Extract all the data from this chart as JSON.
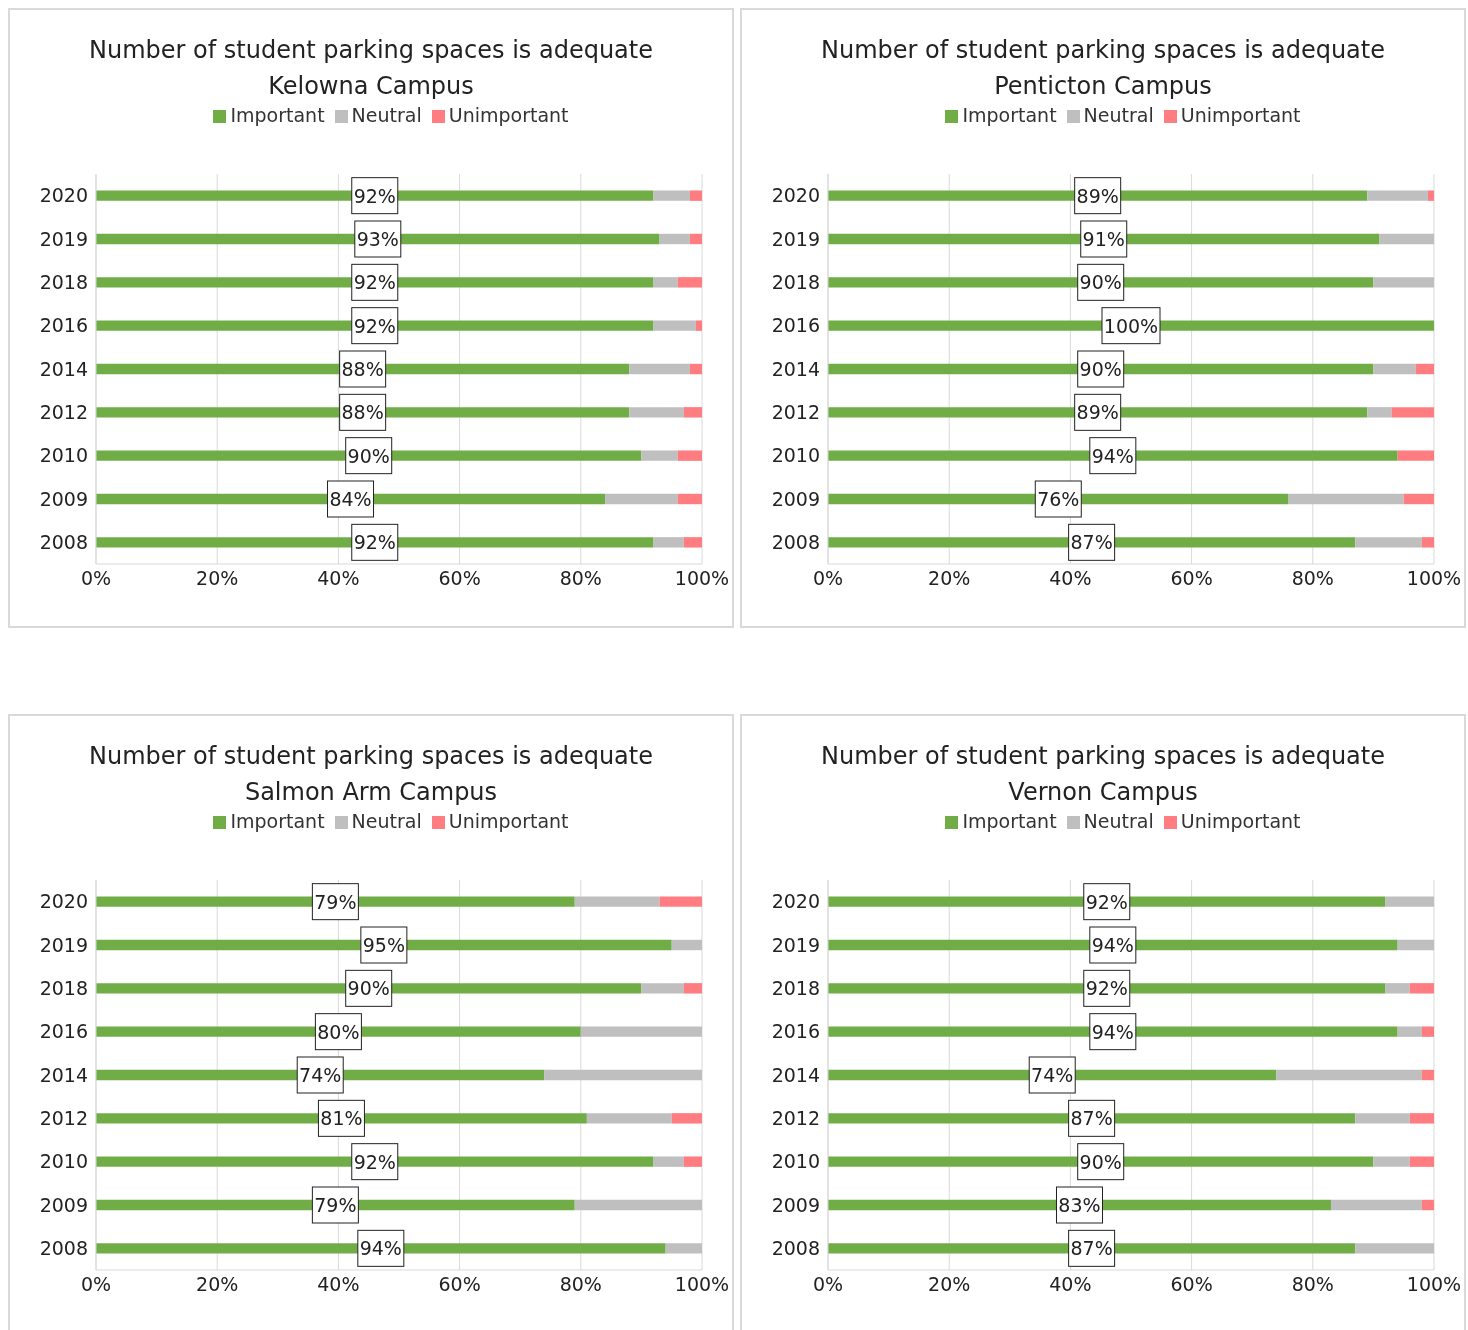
{
  "chart_data": [
    {
      "type": "bar",
      "orientation": "horizontal",
      "stacked": true,
      "title": "Number of student parking spaces is adequate",
      "subtitle": "Kelowna Campus",
      "categories": [
        "2020",
        "2019",
        "2018",
        "2016",
        "2014",
        "2012",
        "2010",
        "2009",
        "2008"
      ],
      "xlim": [
        0,
        100
      ],
      "xticks": [
        {
          "value": 0,
          "label": "0%"
        },
        {
          "value": 20,
          "label": "20%"
        },
        {
          "value": 40,
          "label": "40%"
        },
        {
          "value": 60,
          "label": "60%"
        },
        {
          "value": 80,
          "label": "80%"
        },
        {
          "value": 100,
          "label": "100%"
        }
      ],
      "grid": "x",
      "legend": "top",
      "series": [
        {
          "name": "Important",
          "color": "#70ad47",
          "values": [
            92,
            93,
            92,
            92,
            88,
            88,
            90,
            84,
            92
          ],
          "value_labels": [
            "92%",
            "93%",
            "92%",
            "92%",
            "88%",
            "88%",
            "90%",
            "84%",
            "92%"
          ]
        },
        {
          "name": "Neutral",
          "color": "#bfbfbf",
          "values": [
            6,
            5,
            4,
            7,
            10,
            9,
            6,
            12,
            5
          ]
        },
        {
          "name": "Unimportant",
          "color": "#ff7c80",
          "values": [
            2,
            2,
            4,
            1,
            2,
            3,
            4,
            4,
            3
          ]
        }
      ]
    },
    {
      "type": "bar",
      "orientation": "horizontal",
      "stacked": true,
      "title": "Number of student parking spaces is adequate",
      "subtitle": "Penticton Campus",
      "categories": [
        "2020",
        "2019",
        "2018",
        "2016",
        "2014",
        "2012",
        "2010",
        "2009",
        "2008"
      ],
      "xlim": [
        0,
        100
      ],
      "xticks": [
        {
          "value": 0,
          "label": "0%"
        },
        {
          "value": 20,
          "label": "20%"
        },
        {
          "value": 40,
          "label": "40%"
        },
        {
          "value": 60,
          "label": "60%"
        },
        {
          "value": 80,
          "label": "80%"
        },
        {
          "value": 100,
          "label": "100%"
        }
      ],
      "grid": "x",
      "legend": "top",
      "series": [
        {
          "name": "Important",
          "color": "#70ad47",
          "values": [
            89,
            91,
            90,
            100,
            90,
            89,
            94,
            76,
            87
          ],
          "value_labels": [
            "89%",
            "91%",
            "90%",
            "100%",
            "90%",
            "89%",
            "94%",
            "76%",
            "87%"
          ]
        },
        {
          "name": "Neutral",
          "color": "#bfbfbf",
          "values": [
            10,
            9,
            10,
            0,
            7,
            4,
            0,
            19,
            11
          ]
        },
        {
          "name": "Unimportant",
          "color": "#ff7c80",
          "values": [
            1,
            0,
            0,
            0,
            3,
            7,
            6,
            5,
            2
          ]
        }
      ]
    },
    {
      "type": "bar",
      "orientation": "horizontal",
      "stacked": true,
      "title": "Number of student parking spaces is adequate",
      "subtitle": "Salmon Arm Campus",
      "categories": [
        "2020",
        "2019",
        "2018",
        "2016",
        "2014",
        "2012",
        "2010",
        "2009",
        "2008"
      ],
      "xlim": [
        0,
        100
      ],
      "xticks": [
        {
          "value": 0,
          "label": "0%"
        },
        {
          "value": 20,
          "label": "20%"
        },
        {
          "value": 40,
          "label": "40%"
        },
        {
          "value": 60,
          "label": "60%"
        },
        {
          "value": 80,
          "label": "80%"
        },
        {
          "value": 100,
          "label": "100%"
        }
      ],
      "grid": "x",
      "legend": "top",
      "series": [
        {
          "name": "Important",
          "color": "#70ad47",
          "values": [
            79,
            95,
            90,
            80,
            74,
            81,
            92,
            79,
            94
          ],
          "value_labels": [
            "79%",
            "95%",
            "90%",
            "80%",
            "74%",
            "81%",
            "92%",
            "79%",
            "94%"
          ]
        },
        {
          "name": "Neutral",
          "color": "#bfbfbf",
          "values": [
            14,
            5,
            7,
            20,
            26,
            14,
            5,
            21,
            6
          ]
        },
        {
          "name": "Unimportant",
          "color": "#ff7c80",
          "values": [
            7,
            0,
            3,
            0,
            0,
            5,
            3,
            0,
            0
          ]
        }
      ]
    },
    {
      "type": "bar",
      "orientation": "horizontal",
      "stacked": true,
      "title": "Number of student parking spaces is adequate",
      "subtitle": "Vernon Campus",
      "categories": [
        "2020",
        "2019",
        "2018",
        "2016",
        "2014",
        "2012",
        "2010",
        "2009",
        "2008"
      ],
      "xlim": [
        0,
        100
      ],
      "xticks": [
        {
          "value": 0,
          "label": "0%"
        },
        {
          "value": 20,
          "label": "20%"
        },
        {
          "value": 40,
          "label": "40%"
        },
        {
          "value": 60,
          "label": "60%"
        },
        {
          "value": 80,
          "label": "80%"
        },
        {
          "value": 100,
          "label": "100%"
        }
      ],
      "grid": "x",
      "legend": "top",
      "series": [
        {
          "name": "Important",
          "color": "#70ad47",
          "values": [
            92,
            94,
            92,
            94,
            74,
            87,
            90,
            83,
            87
          ],
          "value_labels": [
            "92%",
            "94%",
            "92%",
            "94%",
            "74%",
            "87%",
            "90%",
            "83%",
            "87%"
          ]
        },
        {
          "name": "Neutral",
          "color": "#bfbfbf",
          "values": [
            8,
            6,
            4,
            4,
            24,
            9,
            6,
            15,
            13
          ]
        },
        {
          "name": "Unimportant",
          "color": "#ff7c80",
          "values": [
            0,
            0,
            4,
            2,
            2,
            4,
            4,
            2,
            0
          ]
        }
      ]
    }
  ]
}
